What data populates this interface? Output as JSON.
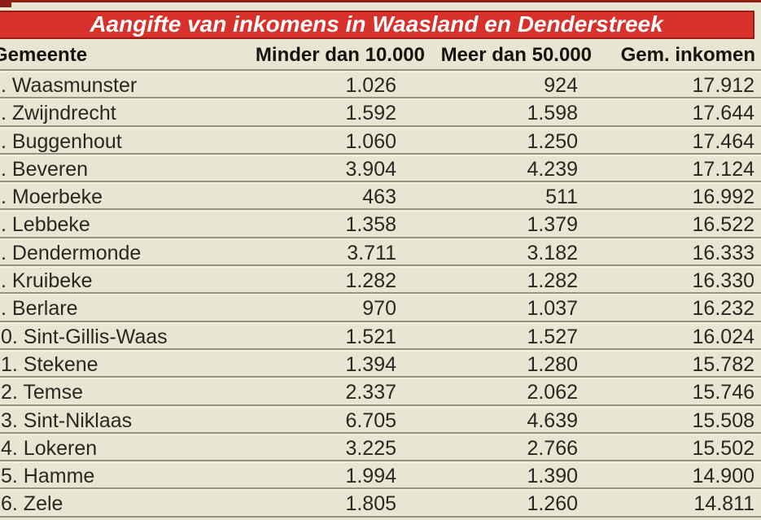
{
  "title": "Aangifte van inkomens in Waasland en Denderstreek",
  "header": {
    "gemeente": "Gemeente",
    "minder": "Minder dan 10.000",
    "meer": "Meer dan 50.000",
    "gem": "Gem. inkomen"
  },
  "rows": [
    {
      "gemeente": ". Waasmunster",
      "minder": "1.026",
      "meer": "924",
      "gem": "17.912"
    },
    {
      "gemeente": ". Zwijndrecht",
      "minder": "1.592",
      "meer": "1.598",
      "gem": "17.644"
    },
    {
      "gemeente": ". Buggenhout",
      "minder": "1.060",
      "meer": "1.250",
      "gem": "17.464"
    },
    {
      "gemeente": ". Beveren",
      "minder": "3.904",
      "meer": "4.239",
      "gem": "17.124"
    },
    {
      "gemeente": ". Moerbeke",
      "minder": "463",
      "meer": "511",
      "gem": "16.992"
    },
    {
      "gemeente": ". Lebbeke",
      "minder": "1.358",
      "meer": "1.379",
      "gem": "16.522"
    },
    {
      "gemeente": ". Dendermonde",
      "minder": "3.711",
      "meer": "3.182",
      "gem": "16.333"
    },
    {
      "gemeente": ". Kruibeke",
      "minder": "1.282",
      "meer": "1.282",
      "gem": "16.330"
    },
    {
      "gemeente": ". Berlare",
      "minder": "970",
      "meer": "1.037",
      "gem": "16.232"
    },
    {
      "gemeente": "0. Sint-Gillis-Waas",
      "minder": "1.521",
      "meer": "1.527",
      "gem": "16.024"
    },
    {
      "gemeente": "1. Stekene",
      "minder": "1.394",
      "meer": "1.280",
      "gem": "15.782"
    },
    {
      "gemeente": "2. Temse",
      "minder": "2.337",
      "meer": "2.062",
      "gem": "15.746"
    },
    {
      "gemeente": "3. Sint-Niklaas",
      "minder": "6.705",
      "meer": "4.639",
      "gem": "15.508"
    },
    {
      "gemeente": "4. Lokeren",
      "minder": "3.225",
      "meer": "2.766",
      "gem": "15.502"
    },
    {
      "gemeente": "5. Hamme",
      "minder": "1.994",
      "meer": "1.390",
      "gem": "14.900"
    },
    {
      "gemeente": "6. Zele",
      "minder": "1.805",
      "meer": "1.260",
      "gem": "14.811"
    }
  ],
  "colors": {
    "paper": "#e9e5d3",
    "title_bar_red": "#d8302a",
    "title_bar_border": "#9c1b14",
    "top_rule": "#8e1b15",
    "header_text": "#17150f",
    "row_text": "#2b2722",
    "separator_dark": "#97927f",
    "separator_light": "#f3efdf",
    "title_text": "#ffffff"
  },
  "chart_data": {
    "type": "table",
    "title": "Aangifte van inkomens in Waasland en Denderstreek",
    "columns": [
      "Gemeente",
      "Minder dan 10.000",
      "Meer dan 50.000",
      "Gem. inkomen"
    ],
    "rows": [
      [
        "Waasmunster",
        1026,
        924,
        17912
      ],
      [
        "Zwijndrecht",
        1592,
        1598,
        17644
      ],
      [
        "Buggenhout",
        1060,
        1250,
        17464
      ],
      [
        "Beveren",
        3904,
        4239,
        17124
      ],
      [
        "Moerbeke",
        463,
        511,
        16992
      ],
      [
        "Lebbeke",
        1358,
        1379,
        16522
      ],
      [
        "Dendermonde",
        3711,
        3182,
        16333
      ],
      [
        "Kruibeke",
        1282,
        1282,
        16330
      ],
      [
        "Berlare",
        970,
        1037,
        16232
      ],
      [
        "Sint-Gillis-Waas",
        1521,
        1527,
        16024
      ],
      [
        "Stekene",
        1394,
        1280,
        15782
      ],
      [
        "Temse",
        2337,
        2062,
        15746
      ],
      [
        "Sint-Niklaas",
        6705,
        4639,
        15508
      ],
      [
        "Lokeren",
        3225,
        2766,
        15502
      ],
      [
        "Hamme",
        1994,
        1390,
        14900
      ],
      [
        "Zele",
        1805,
        1260,
        14811
      ]
    ]
  }
}
